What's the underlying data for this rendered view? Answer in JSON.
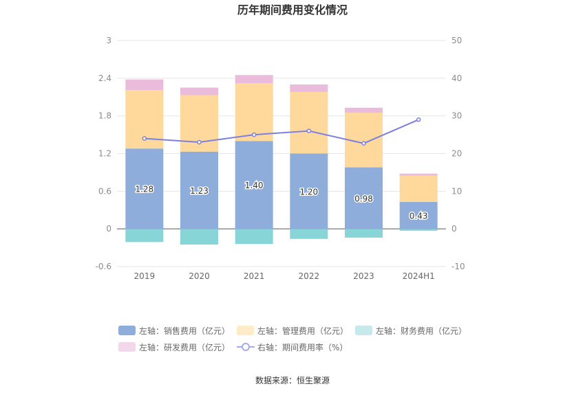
{
  "chart_data": {
    "type": "bar",
    "title": "历年期间费用变化情况",
    "categories": [
      "2019",
      "2020",
      "2021",
      "2022",
      "2023",
      "2024H1"
    ],
    "left_axis": {
      "ylim": [
        -0.6,
        3
      ],
      "ticks": [
        "3",
        "2.4",
        "1.8",
        "1.2",
        "0.6",
        "0",
        "-0.6"
      ]
    },
    "right_axis": {
      "ylim": [
        -10,
        50
      ],
      "ticks": [
        "50",
        "40",
        "30",
        "20",
        "10",
        "0",
        "-10"
      ]
    },
    "series": [
      {
        "name": "左轴：销售费用（亿元）",
        "axis": "left",
        "stack": "a",
        "color": "#8eaddb",
        "values": [
          1.28,
          1.23,
          1.4,
          1.2,
          0.98,
          0.43
        ],
        "labels": [
          "1.28",
          "1.23",
          "1.40",
          "1.20",
          "0.98",
          "0.43"
        ]
      },
      {
        "name": "左轴：管理费用（亿元）",
        "axis": "left",
        "stack": "a",
        "color": "#fed99b",
        "values": [
          0.93,
          0.9,
          0.92,
          0.98,
          0.87,
          0.42
        ]
      },
      {
        "name": "左轴：财务费用（亿元）",
        "axis": "left",
        "stack": "a",
        "color": "#88d5d8",
        "values": [
          -0.21,
          -0.25,
          -0.24,
          -0.16,
          -0.14,
          -0.03
        ]
      },
      {
        "name": "左轴：研发费用（亿元）",
        "axis": "left",
        "stack": "a",
        "color": "#ebbbdb",
        "values": [
          0.17,
          0.12,
          0.13,
          0.12,
          0.08,
          0.03
        ]
      },
      {
        "name": "右轴：期间费用率（%）",
        "axis": "right",
        "type": "line",
        "color": "#7b7fe0",
        "values": [
          24.0,
          23.0,
          25.0,
          26.0,
          22.7,
          29.0
        ]
      }
    ],
    "legend_position": "bottom",
    "grid": true
  },
  "legend_colors": {
    "sales": "#8eaddb",
    "admin": "#fed99b",
    "finance": "#c6eaeb",
    "rd": "#f3d7ea",
    "ratio": "#a6a9ec"
  },
  "footer": {
    "source": "数据来源：恒生聚源"
  }
}
